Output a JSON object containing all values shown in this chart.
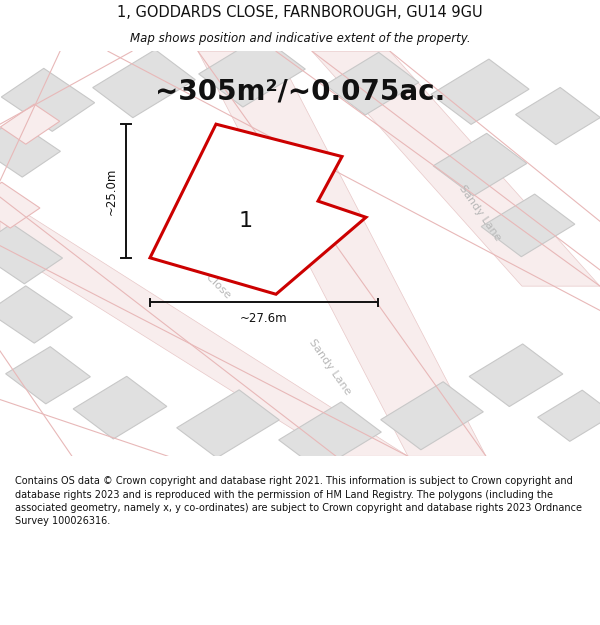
{
  "title_line1": "1, GODDARDS CLOSE, FARNBOROUGH, GU14 9GU",
  "title_line2": "Map shows position and indicative extent of the property.",
  "area_text": "~305m²/~0.075ac.",
  "label_number": "1",
  "dim_height": "~25.0m",
  "dim_width": "~27.6m",
  "footer_text": "Contains OS data © Crown copyright and database right 2021. This information is subject to Crown copyright and database rights 2023 and is reproduced with the permission of HM Land Registry. The polygons (including the associated geometry, namely x, y co-ordinates) are subject to Crown copyright and database rights 2023 Ordnance Survey 100026316.",
  "bg_color": "#f2f2f2",
  "plot_stroke": "#cc0000",
  "plot_fill": "none",
  "dim_color": "#111111",
  "street_label_color": "#b8b8b8",
  "building_fill": "#e0e0e0",
  "building_edge": "#c8c8c8",
  "road_fill": "#f8eded",
  "road_edge": "#e8c8c8",
  "pink_line": "#e8b8b8",
  "title_fontsize": 10.5,
  "subtitle_fontsize": 8.5,
  "area_fontsize": 20,
  "label_fontsize": 16,
  "street_fontsize": 8,
  "dim_fontsize": 8.5,
  "footer_fontsize": 7.0
}
